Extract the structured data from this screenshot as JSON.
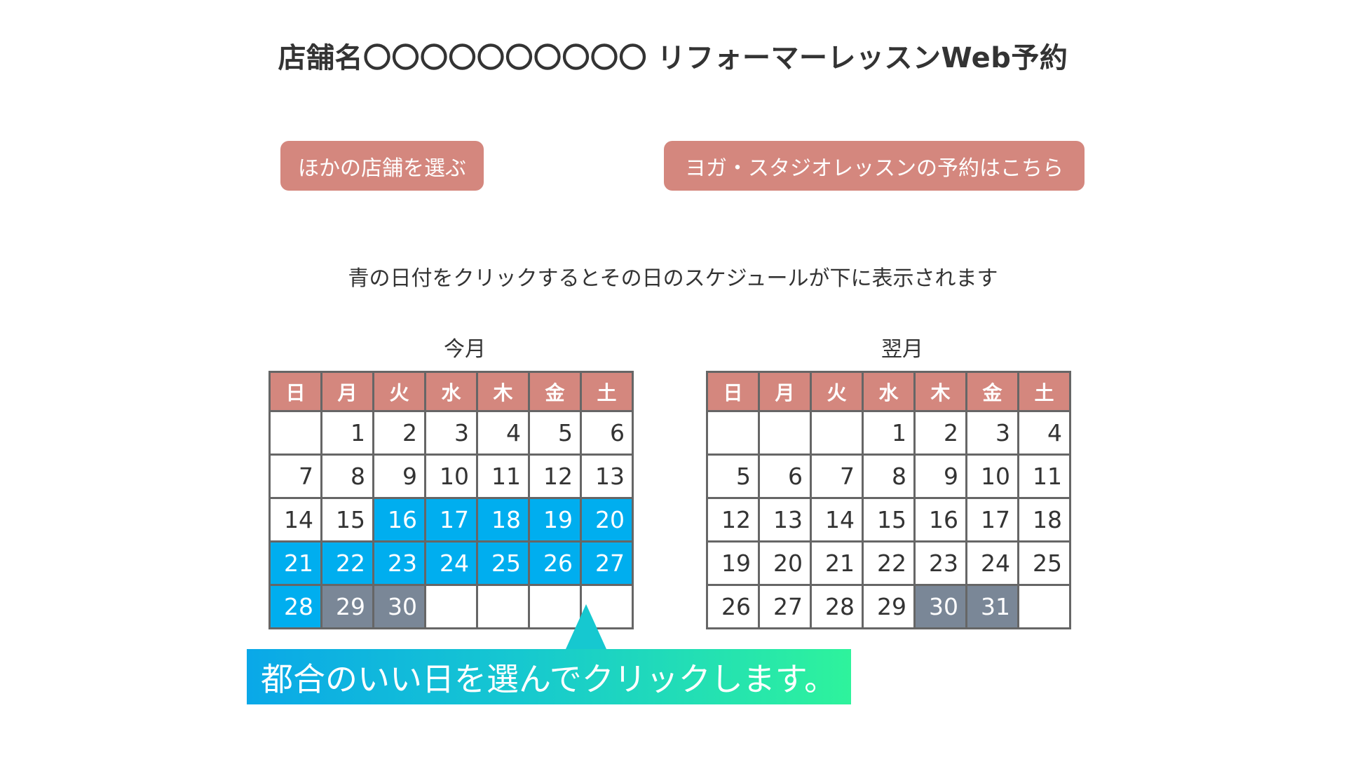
{
  "header": {
    "title": "店舗名〇〇〇〇〇〇〇〇〇〇 リフォーマーレッスンWeb予約"
  },
  "buttons": {
    "other_store": "ほかの店舗を選ぶ",
    "yoga_booking": "ヨガ・スタジオレッスンの予約はこちら"
  },
  "instruction": "青の日付をクリックするとその日のスケジュールが下に表示されます",
  "weekdays": [
    "日",
    "月",
    "火",
    "水",
    "木",
    "金",
    "土"
  ],
  "calendars": [
    {
      "label": "今月",
      "weeks": [
        [
          {
            "day": "",
            "state": "empty"
          },
          {
            "day": "1",
            "state": "normal"
          },
          {
            "day": "2",
            "state": "normal"
          },
          {
            "day": "3",
            "state": "normal"
          },
          {
            "day": "4",
            "state": "normal"
          },
          {
            "day": "5",
            "state": "normal"
          },
          {
            "day": "6",
            "state": "normal"
          }
        ],
        [
          {
            "day": "7",
            "state": "normal"
          },
          {
            "day": "8",
            "state": "normal"
          },
          {
            "day": "9",
            "state": "normal"
          },
          {
            "day": "10",
            "state": "normal"
          },
          {
            "day": "11",
            "state": "normal"
          },
          {
            "day": "12",
            "state": "normal"
          },
          {
            "day": "13",
            "state": "normal"
          }
        ],
        [
          {
            "day": "14",
            "state": "normal"
          },
          {
            "day": "15",
            "state": "normal"
          },
          {
            "day": "16",
            "state": "available"
          },
          {
            "day": "17",
            "state": "available"
          },
          {
            "day": "18",
            "state": "available"
          },
          {
            "day": "19",
            "state": "available"
          },
          {
            "day": "20",
            "state": "available"
          }
        ],
        [
          {
            "day": "21",
            "state": "available"
          },
          {
            "day": "22",
            "state": "available"
          },
          {
            "day": "23",
            "state": "available"
          },
          {
            "day": "24",
            "state": "available"
          },
          {
            "day": "25",
            "state": "available"
          },
          {
            "day": "26",
            "state": "available"
          },
          {
            "day": "27",
            "state": "available"
          }
        ],
        [
          {
            "day": "28",
            "state": "available"
          },
          {
            "day": "29",
            "state": "closed"
          },
          {
            "day": "30",
            "state": "closed"
          },
          {
            "day": "",
            "state": "empty"
          },
          {
            "day": "",
            "state": "empty"
          },
          {
            "day": "",
            "state": "empty"
          },
          {
            "day": "",
            "state": "empty"
          }
        ]
      ]
    },
    {
      "label": "翌月",
      "weeks": [
        [
          {
            "day": "",
            "state": "empty"
          },
          {
            "day": "",
            "state": "empty"
          },
          {
            "day": "",
            "state": "empty"
          },
          {
            "day": "1",
            "state": "normal"
          },
          {
            "day": "2",
            "state": "normal"
          },
          {
            "day": "3",
            "state": "normal"
          },
          {
            "day": "4",
            "state": "normal"
          }
        ],
        [
          {
            "day": "5",
            "state": "normal"
          },
          {
            "day": "6",
            "state": "normal"
          },
          {
            "day": "7",
            "state": "normal"
          },
          {
            "day": "8",
            "state": "normal"
          },
          {
            "day": "9",
            "state": "normal"
          },
          {
            "day": "10",
            "state": "normal"
          },
          {
            "day": "11",
            "state": "normal"
          }
        ],
        [
          {
            "day": "12",
            "state": "normal"
          },
          {
            "day": "13",
            "state": "normal"
          },
          {
            "day": "14",
            "state": "normal"
          },
          {
            "day": "15",
            "state": "normal"
          },
          {
            "day": "16",
            "state": "normal"
          },
          {
            "day": "17",
            "state": "normal"
          },
          {
            "day": "18",
            "state": "normal"
          }
        ],
        [
          {
            "day": "19",
            "state": "normal"
          },
          {
            "day": "20",
            "state": "normal"
          },
          {
            "day": "21",
            "state": "normal"
          },
          {
            "day": "22",
            "state": "normal"
          },
          {
            "day": "23",
            "state": "normal"
          },
          {
            "day": "24",
            "state": "normal"
          },
          {
            "day": "25",
            "state": "normal"
          }
        ],
        [
          {
            "day": "26",
            "state": "normal"
          },
          {
            "day": "27",
            "state": "normal"
          },
          {
            "day": "28",
            "state": "normal"
          },
          {
            "day": "29",
            "state": "normal"
          },
          {
            "day": "30",
            "state": "closed"
          },
          {
            "day": "31",
            "state": "closed"
          },
          {
            "day": "",
            "state": "empty"
          }
        ]
      ]
    }
  ],
  "tooltip": {
    "text": "都合のいい日を選んでクリックします。"
  },
  "colors": {
    "header_accent": "#d4877e",
    "available": "#00aeef",
    "closed": "#7a8797",
    "border": "#666666",
    "text": "#333333"
  }
}
